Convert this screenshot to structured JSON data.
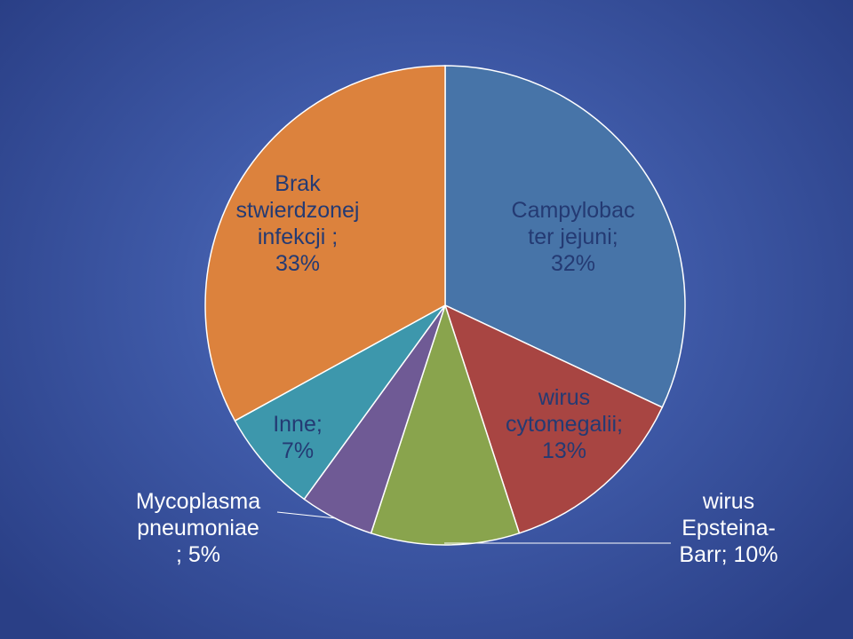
{
  "chart_data": {
    "type": "pie",
    "title": "",
    "start_angle_deg": 0,
    "direction": "clockwise",
    "slices": [
      {
        "label": "Campylobacter jejuni",
        "label_display": "Campylobac\nter jejuni;\n32%",
        "value": 32,
        "color": "#4774a8"
      },
      {
        "label": "wirus cytomegalii",
        "label_display": "wirus\ncytomegalii;\n13%",
        "value": 13,
        "color": "#a84542"
      },
      {
        "label": "wirus Epsteina-Barr",
        "label_display": "wirus\nEpsteina-\nBarr; 10%",
        "value": 10,
        "color": "#89a44d"
      },
      {
        "label": "Mycoplasma pneumoniae",
        "label_display": "Mycoplasma\npneumoniae\n; 5%",
        "value": 5,
        "color": "#6f5a95"
      },
      {
        "label": "Inne",
        "label_display": "Inne;\n7%",
        "value": 7,
        "color": "#3d97ac"
      },
      {
        "label": "Brak stwierdzonej infekcji",
        "label_display": "Brak\nstwierdzonej\ninfekcji ;\n33%",
        "value": 33,
        "color": "#dc823d"
      }
    ]
  }
}
